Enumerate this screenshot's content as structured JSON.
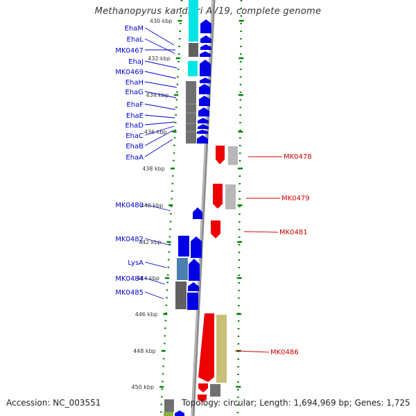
{
  "title": "Methanopyrus kandleri AV19, complete genome",
  "footer": {
    "accession": "Accession: NC_003551",
    "topology": "Topology: circular; Length: 1,694,969 bp; Genes: 1,725"
  },
  "colors": {
    "blue_gene": "#0000e6",
    "red_gene": "#ee0000",
    "cyan_cds": "#00e5e5",
    "gray_cds": "#606060",
    "lightgray_cds": "#b8b8b8",
    "steel_cds": "#4a7fb0",
    "khaki_cds": "#c8bf78",
    "olive_cds": "#90b040",
    "label_blue": "#0000cc",
    "label_red": "#cc0000",
    "tick_green": "#008000"
  },
  "kbp_labels": [
    "430 kbp",
    "432 kbp",
    "434 kbp",
    "436 kbp",
    "438 kbp",
    "440 kbp",
    "442 kbp",
    "444 kbp",
    "446 kbp",
    "448 kbp",
    "450 kbp"
  ],
  "left_labels": [
    "EhaM",
    "EhaL",
    "MK0467",
    "EhaJ",
    "MK0469",
    "EhaH",
    "EhaG",
    "EhaF",
    "EhaE",
    "EhaD",
    "EhaC",
    "EhaB",
    "EhaA",
    "MK0480",
    "MK0482",
    "LysA",
    "MK0484",
    "MK0485"
  ],
  "right_labels": [
    "MK0478",
    "MK0479",
    "MK0481",
    "MK0486"
  ]
}
